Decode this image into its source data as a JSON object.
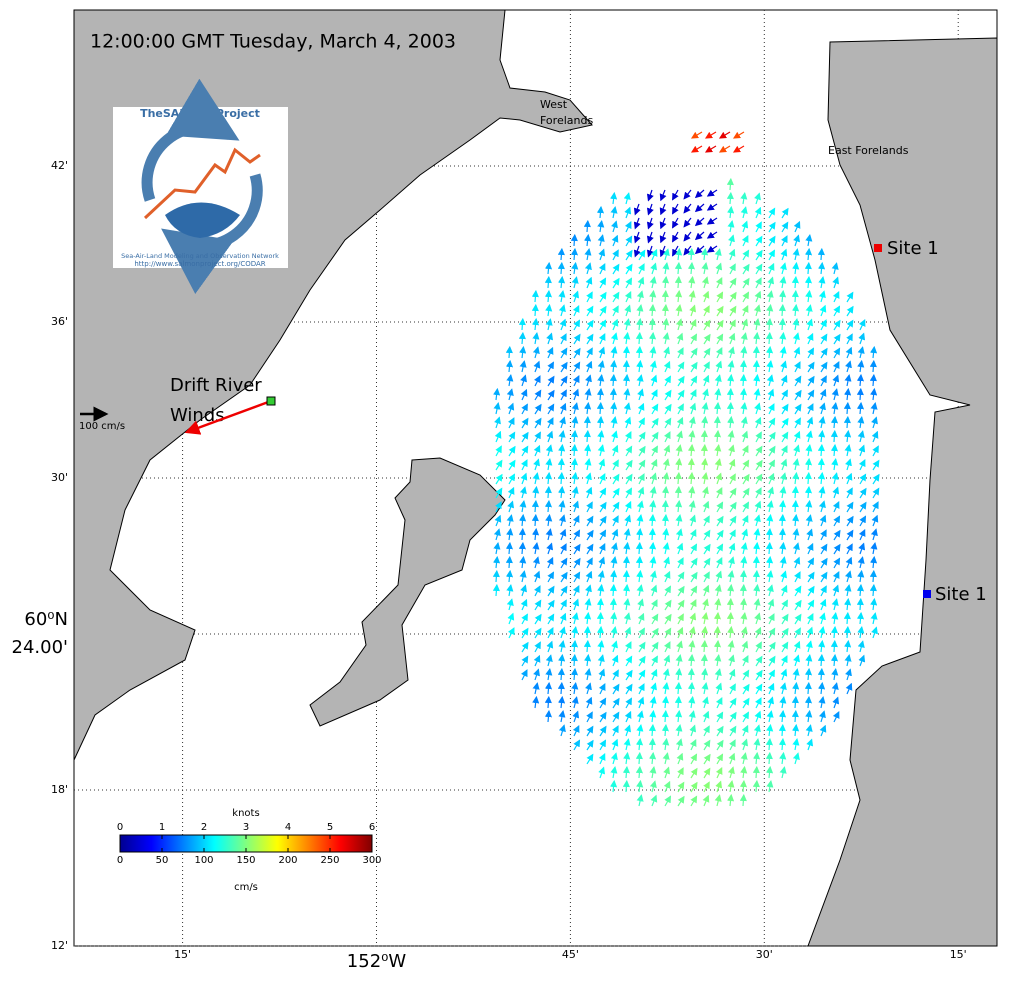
{
  "map": {
    "title": "12:00:00 GMT Tuesday, March 4, 2003",
    "lat_lim": [
      60.2,
      60.8
    ],
    "lon_lim": [
      -152.39,
      -151.2
    ],
    "lat_ticks": [
      {
        "value": 60.7,
        "label": "42'"
      },
      {
        "value": 60.6,
        "label": "36'"
      },
      {
        "value": 60.5,
        "label": "30'"
      },
      {
        "value": 60.4,
        "label": "24.00'"
      },
      {
        "value": 60.3,
        "label": "18'"
      },
      {
        "value": 60.2,
        "label": "12'"
      }
    ],
    "lat_degree": "60⁰N",
    "lon_ticks": [
      {
        "value": -152.25,
        "label": "15'"
      },
      {
        "value": -152,
        "label": "152⁰W"
      },
      {
        "value": -151.75,
        "label": "45'"
      },
      {
        "value": -151.5,
        "label": "30'"
      },
      {
        "value": -151.25,
        "label": "15'"
      }
    ],
    "places": {
      "west_1": "West",
      "west_2": "Forelands",
      "east": "East Forelands",
      "site_a": "Site 1",
      "site_b": "Site 1",
      "drift_1": "Drift River",
      "drift_2": "Winds",
      "scale": "100 cm/s"
    },
    "logo": {
      "name": "TheSALMONProject",
      "network": "Sea-Air-Land Modeling and Observation Network",
      "url": "http://www.salmonproject.org/CODAR"
    },
    "colorbar": {
      "top_title": "knots",
      "top_lim": [
        0,
        6
      ],
      "top_ticks": [
        0,
        1,
        2,
        3,
        4,
        5,
        6
      ],
      "bottom_title": "cm/s",
      "bottom_lim": [
        0,
        300
      ],
      "bottom_ticks": [
        0,
        50,
        100,
        150,
        200,
        250,
        300
      ]
    }
  }
}
